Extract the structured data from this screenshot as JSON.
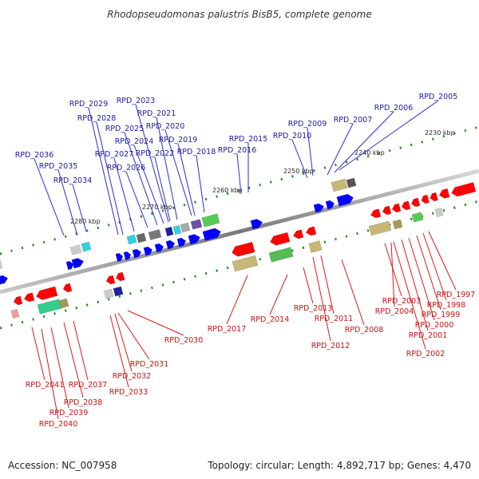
{
  "title": "Rhodopseudomonas palustris BisB5, complete genome",
  "footer": {
    "accession": "Accession: NC_007958",
    "summary": "Topology: circular; Length: 4,892,717 bp; Genes: 4,470"
  },
  "scale": {
    "ticks": [
      "2230 kbp",
      "2240 kbp",
      "2250 kbp",
      "2260 kbp",
      "2270 kbp",
      "2280 kbp"
    ]
  },
  "genes_top": [
    "RPD_2005",
    "RPD_2006",
    "RPD_2007",
    "RPD_2009",
    "RPD_2010",
    "RPD_2015",
    "RPD_2016",
    "RPD_2018",
    "RPD_2019",
    "RPD_2020",
    "RPD_2021",
    "RPD_2022",
    "RPD_2023",
    "RPD_2024",
    "RPD_2025",
    "RPD_2026",
    "RPD_2027",
    "RPD_2028",
    "RPD_2029",
    "RPD_2034",
    "RPD_2035",
    "RPD_2036"
  ],
  "genes_bottom": [
    "RPD_1997",
    "RPD_1998",
    "RPD_1999",
    "RPD_2000",
    "RPD_2001",
    "RPD_2002",
    "RPD_2003",
    "RPD_2004",
    "RPD_2008",
    "RPD_2011",
    "RPD_2012",
    "RPD_2013",
    "RPD_2014",
    "RPD_2017",
    "RPD_2030",
    "RPD_2031",
    "RPD_2032",
    "RPD_2033",
    "RPD_2037",
    "RPD_2038",
    "RPD_2039",
    "RPD_2040",
    "RPD_2041"
  ],
  "colors": {
    "forward_strand": "#0000ff",
    "reverse_strand": "#ff0000",
    "top_labels": "#1a1aa6",
    "bottom_labels": "#cc1111",
    "backbone": "#888888",
    "ticks": "#1e8a1e"
  }
}
